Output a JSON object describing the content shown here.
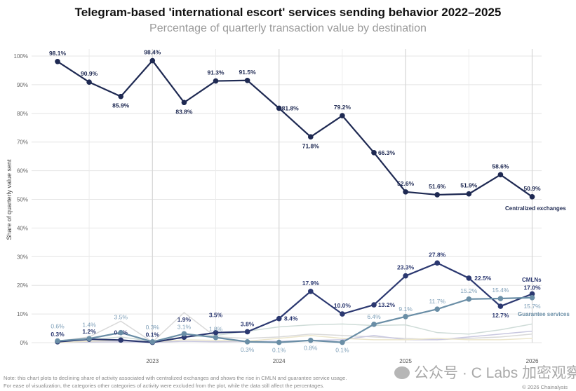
{
  "chart_data": {
    "type": "line",
    "title": "Telegram-based 'international escort' services sending behavior 2022–2025",
    "subtitle": "Percentage of quarterly transaction value by destination",
    "ylabel": "Share of quarterly value sent",
    "xlabel": "",
    "ylim": [
      0,
      100
    ],
    "yticks": [
      "0%",
      "10%",
      "20%",
      "30%",
      "40%",
      "50%",
      "60%",
      "70%",
      "80%",
      "90%",
      "100%"
    ],
    "xtick_labels": [
      {
        "index": 3,
        "label": "2023"
      },
      {
        "index": 7,
        "label": "2024"
      },
      {
        "index": 11,
        "label": "2025"
      },
      {
        "index": 15,
        "label": "2026"
      }
    ],
    "grid": true,
    "series": [
      {
        "name": "Centralized exchanges",
        "color": "#1e2952",
        "values": [
          98.1,
          90.9,
          85.9,
          98.4,
          83.8,
          91.3,
          91.5,
          81.8,
          71.8,
          79.2,
          66.3,
          52.6,
          51.6,
          51.9,
          58.6,
          50.9
        ],
        "labels": [
          "98.1%",
          "90.9%",
          "85.9%",
          "98.4%",
          "83.8%",
          "91.3%",
          "91.5%",
          "81.8%",
          "71.8%",
          "79.2%",
          "66.3%",
          "52.6%",
          "51.6%",
          "51.9%",
          "58.6%",
          "50.9%"
        ]
      },
      {
        "name": "CMLNs",
        "color": "#2b3870",
        "values": [
          0.3,
          1.2,
          0.9,
          0.1,
          1.9,
          3.5,
          3.8,
          8.4,
          17.9,
          10.0,
          13.2,
          23.3,
          27.8,
          22.5,
          12.7,
          17.0
        ],
        "labels": [
          "0.3%",
          "1.2%",
          "0.9%",
          "0.1%",
          "1.9%",
          "3.5%",
          "3.8%",
          "8.4%",
          "17.9%",
          "10.0%",
          "13.2%",
          "23.3%",
          "27.8%",
          "22.5%",
          "12.7%",
          "17.0%"
        ]
      },
      {
        "name": "Guarantee services",
        "color": "#6a8ea6",
        "values": [
          0.6,
          1.4,
          3.5,
          0.3,
          3.1,
          1.8,
          0.3,
          0.1,
          0.8,
          0.1,
          6.4,
          9.1,
          11.7,
          15.2,
          15.4,
          15.7
        ],
        "labels": [
          "0.6%",
          "1.4%",
          "3.5%",
          "0.3%",
          "3.1%",
          "1.8%",
          "0.3%",
          "0.1%",
          "0.8%",
          "0.1%",
          "6.4%",
          "9.1%",
          "11.7%",
          "15.2%",
          "15.4%",
          "15.7%"
        ]
      }
    ],
    "background_series": [
      {
        "color": "#d9d9d9",
        "values": [
          0.5,
          2,
          7.5,
          0.2,
          10.5,
          2,
          1.5,
          2,
          3,
          2.5,
          2,
          1.5,
          1,
          1.5,
          2,
          3
        ]
      },
      {
        "color": "#cfdcd8",
        "values": [
          0.3,
          1,
          2,
          0.5,
          2,
          2.5,
          4,
          5.5,
          6.2,
          6.5,
          6,
          6.2,
          3.5,
          3,
          4.5,
          6.5
        ]
      },
      {
        "color": "#c9c8e0",
        "values": [
          0,
          0.2,
          0.3,
          0.1,
          0.5,
          0.3,
          0.4,
          0.5,
          0.8,
          1,
          2.5,
          1,
          1,
          2,
          3,
          4
        ]
      },
      {
        "color": "#ece6cc",
        "values": [
          0,
          0.5,
          0.8,
          0.2,
          1,
          0.8,
          0.5,
          1.5,
          2.5,
          1.5,
          1,
          1,
          1.5,
          1,
          1,
          1.5
        ]
      }
    ]
  },
  "footer": {
    "note_line1": "Note: this chart plots to declining share of activity associated with centralized exchanges and shows the rise in CMLN and guarantee service usage.",
    "note_line2": "For ease of visualization, the categories other categories of activity were excluded from the plot, while the data still affect the percentages.",
    "copyright": "© 2026 Chainalysis",
    "watermark": "公众号 · C Labs 加密观察"
  }
}
